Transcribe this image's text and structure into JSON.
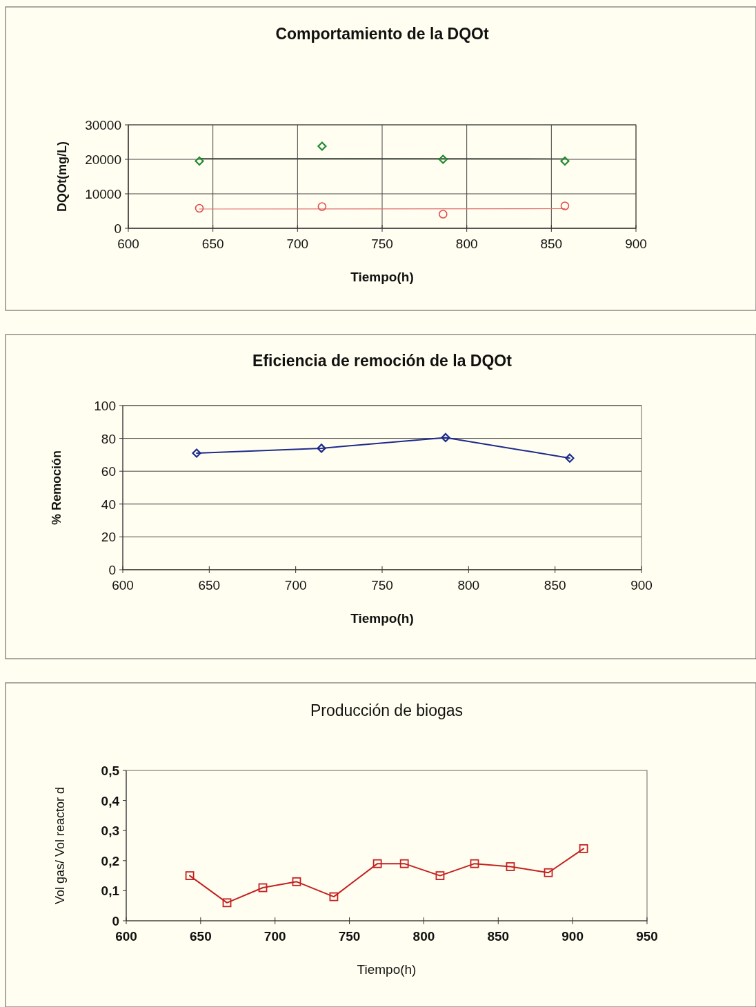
{
  "chart_data": [
    {
      "type": "scatter",
      "title": "Comportamiento de la DQOt",
      "xlabel": "Tiempo(h)",
      "ylabel": "DQOt(mg/L)",
      "xlim": [
        600,
        900
      ],
      "xticks": [
        600,
        650,
        700,
        750,
        800,
        850,
        900
      ],
      "ylim": [
        0,
        30000
      ],
      "yticks": [
        0,
        10000,
        20000,
        30000
      ],
      "grid": true,
      "series": [
        {
          "type": "scatter",
          "color": "#1e8a2e",
          "marker": "diamond",
          "x": [
            642,
            714.5,
            786,
            858
          ],
          "values": [
            19500,
            23800,
            20000,
            19500
          ]
        },
        {
          "type": "scatter",
          "color": "#e05050",
          "marker": "circle",
          "x": [
            642,
            714.5,
            786,
            858
          ],
          "values": [
            5800,
            6300,
            4100,
            6500
          ]
        },
        {
          "type": "line",
          "color": "#3a4a3a",
          "marker": "none",
          "x": [
            642,
            858
          ],
          "values": [
            20300,
            20200
          ]
        },
        {
          "type": "line",
          "color": "#e07070",
          "marker": "none",
          "x": [
            642,
            858
          ],
          "values": [
            5600,
            5700
          ]
        }
      ]
    },
    {
      "type": "line",
      "title": "Eficiencia de remoción de la DQOt",
      "xlabel": "Tiempo(h)",
      "ylabel": "% Remoción",
      "xlim": [
        600,
        900
      ],
      "xticks": [
        600,
        650,
        700,
        750,
        800,
        850,
        900
      ],
      "ylim": [
        0,
        100
      ],
      "yticks": [
        0,
        20,
        40,
        60,
        80,
        100
      ],
      "grid": "y",
      "marker": "diamond",
      "series": [
        {
          "color": "#1c2a8c",
          "x": [
            642.7,
            714.9,
            786.7,
            858.5
          ],
          "values": [
            71,
            74,
            80.5,
            68
          ]
        }
      ]
    },
    {
      "type": "line",
      "title": "Producción de biogas",
      "xlabel": "Tiempo(h)",
      "ylabel": "Vol gas/ Vol reactor d",
      "xlim": [
        600,
        950
      ],
      "xticks": [
        600,
        650,
        700,
        750,
        800,
        850,
        900,
        950
      ],
      "ylim": [
        0,
        0.5
      ],
      "yticks": [
        {
          "value": 0,
          "label": "0"
        },
        {
          "value": 0.1,
          "label": "0,1"
        },
        {
          "value": 0.2,
          "label": "0,2"
        },
        {
          "value": 0.3,
          "label": "0,3"
        },
        {
          "value": 0.4,
          "label": "0,4"
        },
        {
          "value": 0.5,
          "label": "0,5"
        }
      ],
      "grid": false,
      "marker": "square",
      "series": [
        {
          "color": "#c42020",
          "x": [
            642.7,
            667.7,
            691.8,
            714.5,
            739.5,
            768.8,
            786.9,
            810.9,
            834.1,
            858.2,
            883.7,
            907.4
          ],
          "values": [
            0.15,
            0.06,
            0.11,
            0.13,
            0.08,
            0.19,
            0.19,
            0.15,
            0.19,
            0.18,
            0.16,
            0.24
          ]
        }
      ]
    }
  ]
}
